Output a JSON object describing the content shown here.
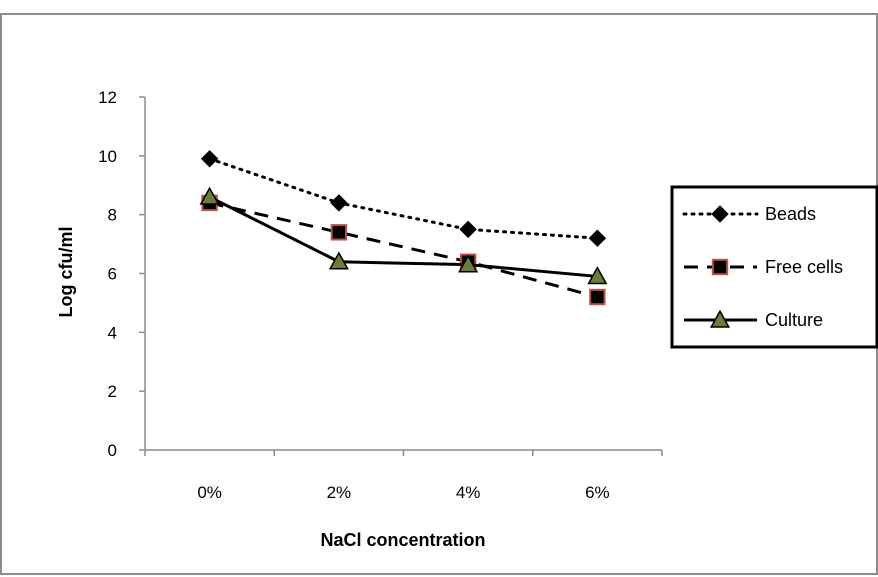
{
  "chart_data": {
    "type": "line",
    "title": "",
    "xlabel": "NaCl concentration",
    "ylabel": "Log cfu/ml",
    "categories": [
      "0%",
      "2%",
      "4%",
      "6%"
    ],
    "ylim": [
      0,
      12
    ],
    "yticks": [
      0,
      2,
      4,
      6,
      8,
      10,
      12
    ],
    "grid": false,
    "legend_position": "right",
    "series": [
      {
        "name": "Beads",
        "values": [
          9.9,
          8.4,
          7.5,
          7.2
        ],
        "line": "dotted",
        "marker": "diamond",
        "marker_fill": "#000000",
        "marker_stroke": "#000000"
      },
      {
        "name": "Free cells",
        "values": [
          8.4,
          7.4,
          6.4,
          5.2
        ],
        "line": "dashed",
        "marker": "square",
        "marker_fill": "#000000",
        "marker_stroke": "#c0504d"
      },
      {
        "name": "Culture",
        "values": [
          8.6,
          6.4,
          6.3,
          5.9
        ],
        "line": "solid",
        "marker": "triangle",
        "marker_fill": "#6b7d3a",
        "marker_stroke": "#000000"
      }
    ]
  }
}
